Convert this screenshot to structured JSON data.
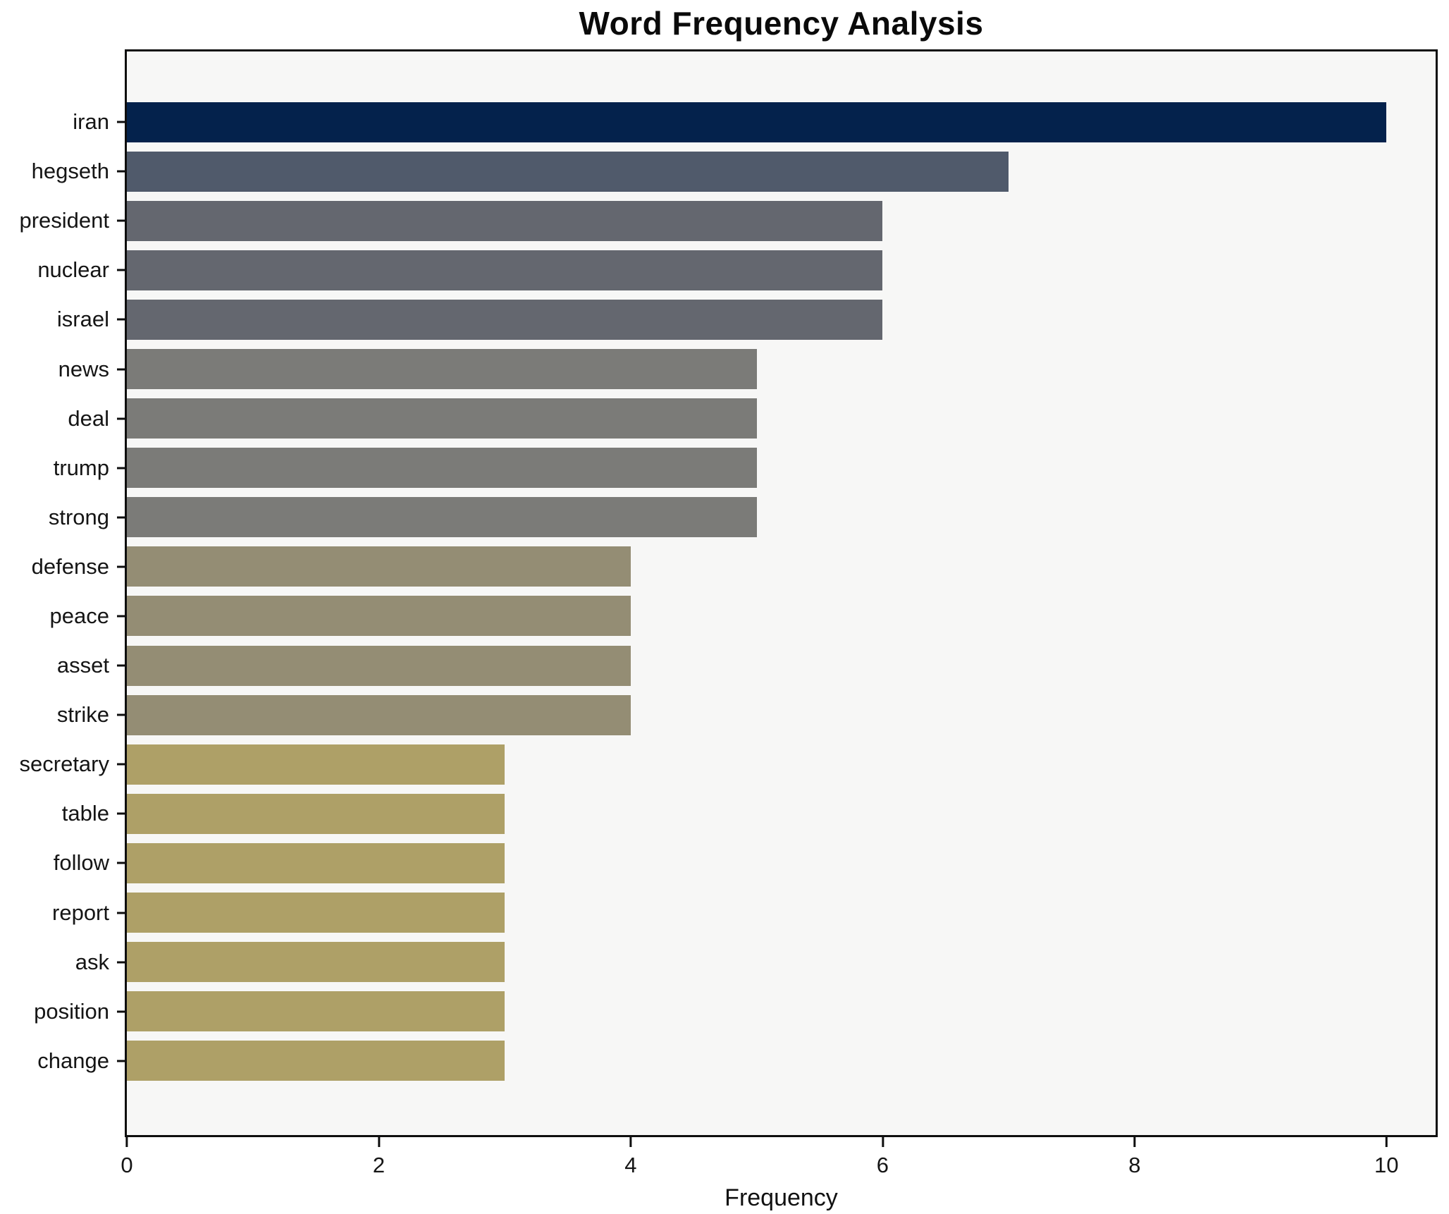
{
  "title": "Word Frequency Analysis",
  "chart_data": {
    "type": "bar",
    "orientation": "horizontal",
    "title": "Word Frequency Analysis",
    "xlabel": "Frequency",
    "ylabel": "",
    "grid": false,
    "legend": "none",
    "plot_background": "#f7f7f6",
    "spine_color": "#0e0e0e",
    "xlim": [
      0,
      10.39
    ],
    "x_ticks": [
      0,
      2,
      4,
      6,
      8,
      10
    ],
    "x_tick_labels": [
      "0",
      "2",
      "4",
      "6",
      "8",
      "10"
    ],
    "categories": [
      "iran",
      "hegseth",
      "president",
      "nuclear",
      "israel",
      "news",
      "deal",
      "trump",
      "strong",
      "defense",
      "peace",
      "asset",
      "strike",
      "secretary",
      "table",
      "follow",
      "report",
      "ask",
      "position",
      "change"
    ],
    "values": [
      10,
      7,
      6,
      6,
      6,
      5,
      5,
      5,
      5,
      4,
      4,
      4,
      4,
      3,
      3,
      3,
      3,
      3,
      3,
      3
    ],
    "bar_colors": [
      "#04224c",
      "#505a6b",
      "#64676f",
      "#64676f",
      "#64676f",
      "#7b7b78",
      "#7b7b78",
      "#7b7b78",
      "#7b7b78",
      "#948d74",
      "#948d74",
      "#948d74",
      "#948d74",
      "#aea067",
      "#aea067",
      "#aea067",
      "#aea067",
      "#aea067",
      "#aea067",
      "#aea067"
    ]
  }
}
